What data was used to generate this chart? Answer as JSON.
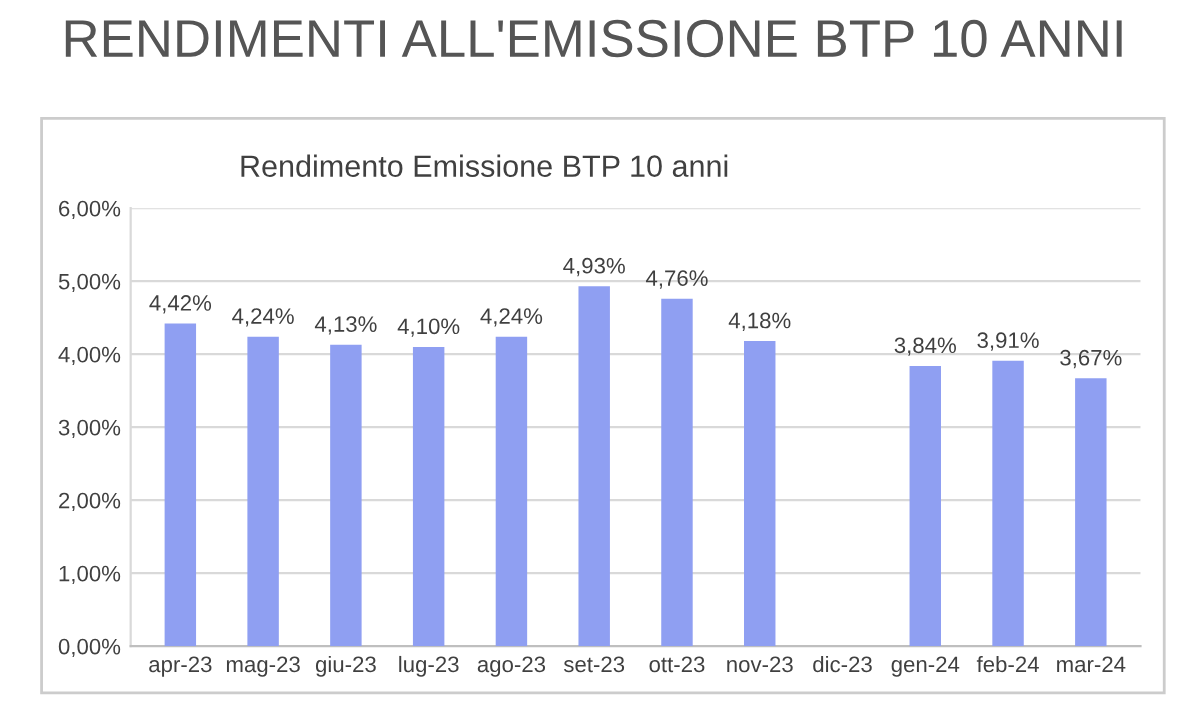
{
  "chart_data": {
    "type": "bar",
    "title": "RENDIMENTI ALL'EMISSIONE BTP 10 ANNI",
    "subtitle": "Rendimento Emissione BTP 10 anni",
    "categories": [
      "apr-23",
      "mag-23",
      "giu-23",
      "lug-23",
      "ago-23",
      "set-23",
      "ott-23",
      "nov-23",
      "dic-23",
      "gen-24",
      "feb-24",
      "mar-24"
    ],
    "values": [
      4.42,
      4.24,
      4.13,
      4.1,
      4.24,
      4.93,
      4.76,
      4.18,
      null,
      3.84,
      3.91,
      3.67
    ],
    "value_labels": [
      "4,42%",
      "4,24%",
      "4,13%",
      "4,10%",
      "4,24%",
      "4,93%",
      "4,76%",
      "4,18%",
      null,
      "3,84%",
      "3,91%",
      "3,67%"
    ],
    "color": "#8f9ff2",
    "ylim": [
      0,
      6
    ],
    "yticks": [
      {
        "value": 0,
        "label": "0,00%"
      },
      {
        "value": 1,
        "label": "1,00%"
      },
      {
        "value": 2,
        "label": "2,00%"
      },
      {
        "value": 3,
        "label": "3,00%"
      },
      {
        "value": 4,
        "label": "4,00%"
      },
      {
        "value": 5,
        "label": "5,00%"
      },
      {
        "value": 6,
        "label": "6,00%"
      }
    ],
    "grid": "y"
  }
}
